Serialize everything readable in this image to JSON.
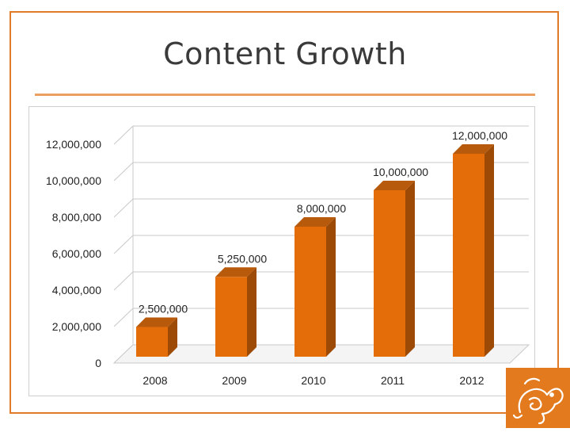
{
  "slide": {
    "title": "Content Growth",
    "accent_color": "#e07b2a"
  },
  "chart_data": {
    "type": "bar",
    "title": "",
    "xlabel": "",
    "ylabel": "",
    "categories": [
      "2008",
      "2009",
      "2010",
      "2011",
      "2012"
    ],
    "values": [
      2500000,
      5250000,
      8000000,
      10000000,
      12000000
    ],
    "data_labels": [
      "2,500,000",
      "5,250,000",
      "8,000,000",
      "10,000,000",
      "12,000,000"
    ],
    "y_ticks": [
      0,
      2000000,
      4000000,
      6000000,
      8000000,
      10000000,
      12000000
    ],
    "y_tick_labels": [
      "0",
      "2,000,000",
      "4,000,000",
      "6,000,000",
      "8,000,000",
      "10,000,000",
      "12,000,000"
    ],
    "ylim": [
      0,
      12000000
    ],
    "grid": true,
    "legend": "none",
    "style": "3d-column",
    "bar_color": "#e46d0a"
  },
  "logo": {
    "icon": "stylized-elephant-logo-icon",
    "color": "#e47a1e"
  }
}
